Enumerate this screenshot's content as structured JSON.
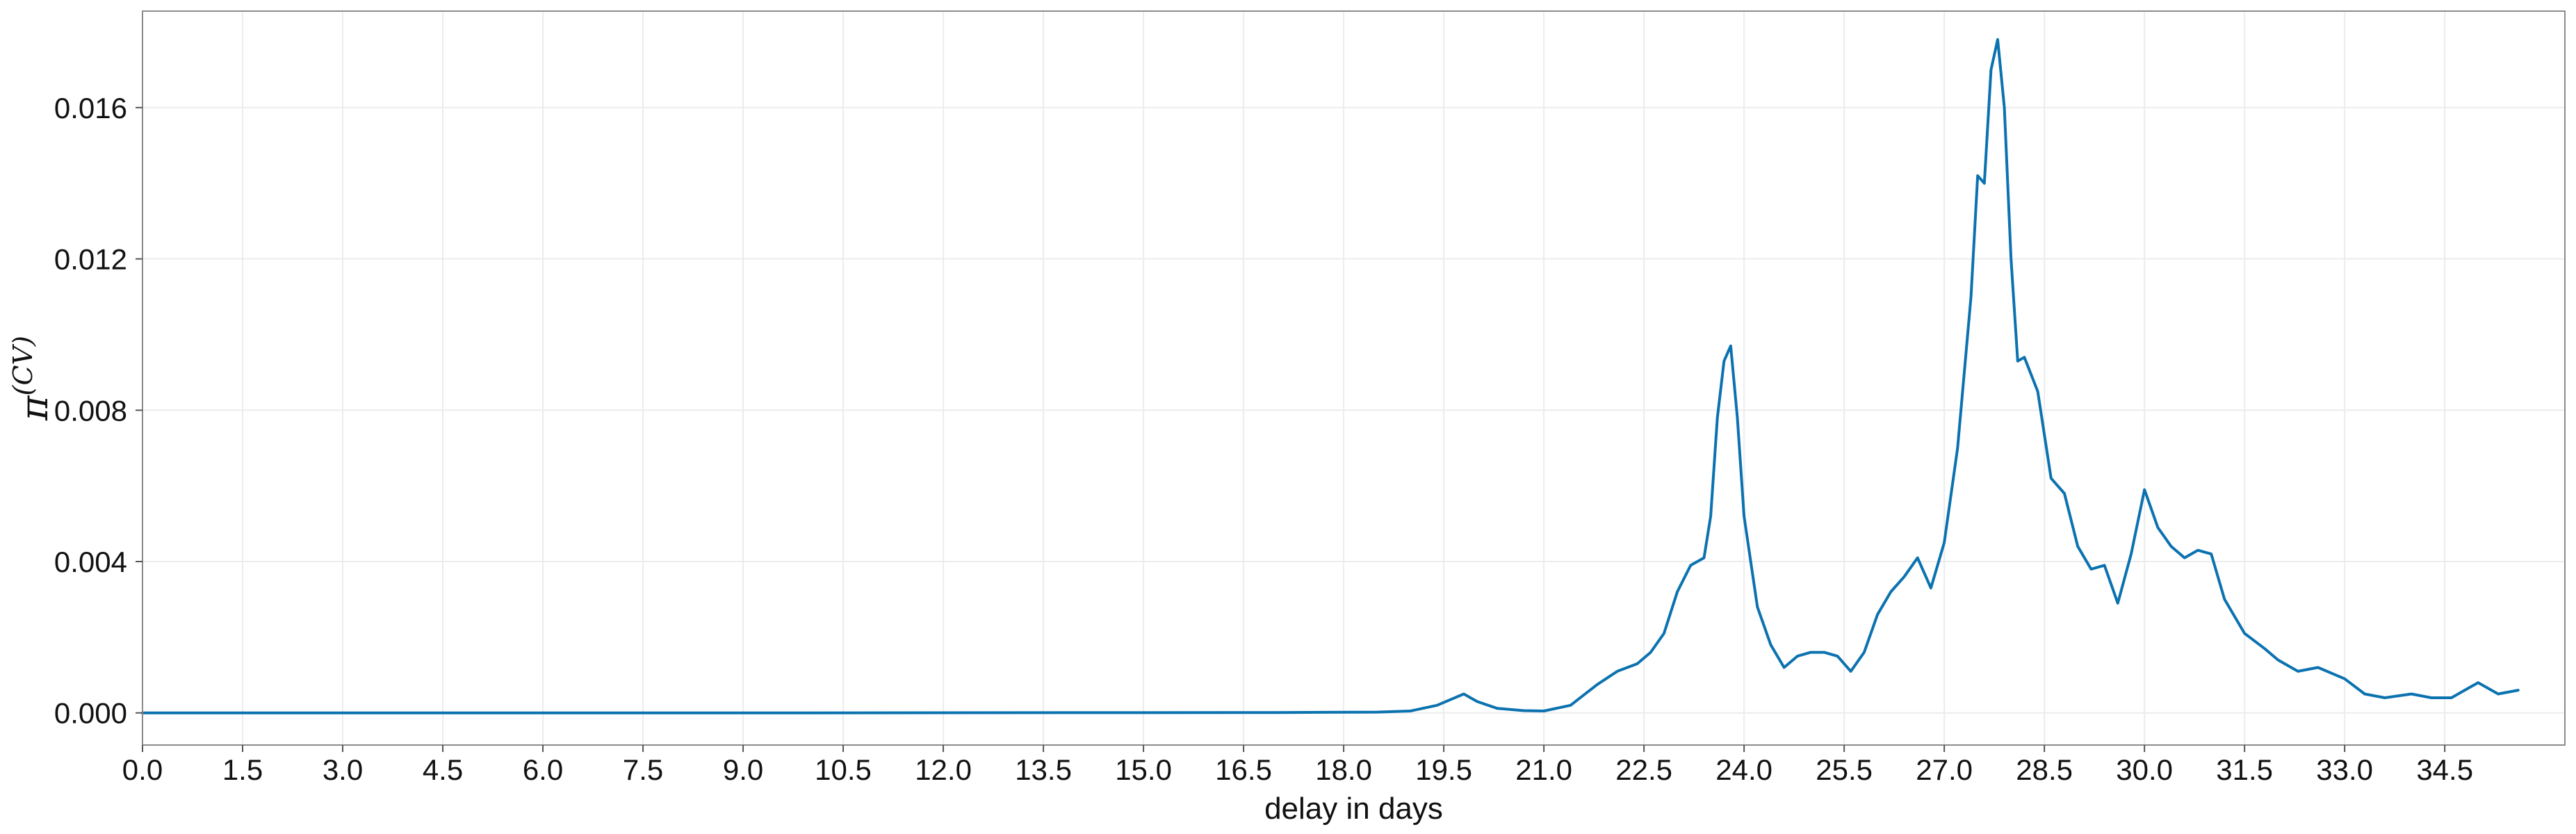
{
  "chart_data": {
    "type": "line",
    "title": "",
    "xlabel": "delay in days",
    "ylabel": {
      "base": "π",
      "superscript": "(CV)"
    },
    "xlim": [
      0,
      36.3
    ],
    "ylim": [
      -0.00085,
      0.01855
    ],
    "grid": true,
    "legend": "none",
    "x_ticks": [
      0.0,
      1.5,
      3.0,
      4.5,
      6.0,
      7.5,
      9.0,
      10.5,
      12.0,
      13.5,
      15.0,
      16.5,
      18.0,
      19.5,
      21.0,
      22.5,
      24.0,
      25.5,
      27.0,
      28.5,
      30.0,
      31.5,
      33.0,
      34.5
    ],
    "x_tick_labels": [
      "0.0",
      "1.5",
      "3.0",
      "4.5",
      "6.0",
      "7.5",
      "9.0",
      "10.5",
      "12.0",
      "13.5",
      "15.0",
      "16.5",
      "18.0",
      "19.5",
      "21.0",
      "22.5",
      "24.0",
      "25.5",
      "27.0",
      "28.5",
      "30.0",
      "31.5",
      "33.0",
      "34.5"
    ],
    "y_ticks": [
      0.0,
      0.004,
      0.008,
      0.012,
      0.016
    ],
    "y_tick_labels": [
      "0.000",
      "0.004",
      "0.008",
      "0.012",
      "0.016"
    ],
    "series": [
      {
        "color": "#0b72b0",
        "x": [
          0.0,
          10.0,
          17.0,
          18.5,
          19.0,
          19.4,
          19.8,
          20.0,
          20.3,
          20.7,
          21.0,
          21.4,
          21.8,
          22.1,
          22.4,
          22.6,
          22.8,
          23.0,
          23.2,
          23.4,
          23.5,
          23.6,
          23.7,
          23.8,
          23.9,
          24.0,
          24.2,
          24.4,
          24.6,
          24.8,
          25.0,
          25.2,
          25.4,
          25.6,
          25.8,
          26.0,
          26.2,
          26.4,
          26.6,
          26.8,
          27.0,
          27.2,
          27.4,
          27.5,
          27.6,
          27.7,
          27.8,
          27.9,
          28.0,
          28.1,
          28.2,
          28.4,
          28.6,
          28.8,
          29.0,
          29.2,
          29.4,
          29.6,
          29.8,
          30.0,
          30.2,
          30.4,
          30.6,
          30.8,
          31.0,
          31.2,
          31.5,
          31.8,
          32.0,
          32.3,
          32.6,
          33.0,
          33.3,
          33.6,
          34.0,
          34.3,
          34.6,
          35.0,
          35.3,
          35.6
        ],
        "y": [
          0.0,
          0.0,
          1e-05,
          2e-05,
          5e-05,
          0.0002,
          0.0005,
          0.0003,
          0.00012,
          6e-05,
          5e-05,
          0.0002,
          0.00075,
          0.0011,
          0.0013,
          0.0016,
          0.0021,
          0.0032,
          0.0039,
          0.0041,
          0.0052,
          0.0078,
          0.0093,
          0.0097,
          0.0078,
          0.0052,
          0.0028,
          0.0018,
          0.0012,
          0.0015,
          0.0016,
          0.0016,
          0.0015,
          0.0011,
          0.0016,
          0.0026,
          0.0032,
          0.0036,
          0.0041,
          0.0033,
          0.0045,
          0.007,
          0.011,
          0.0142,
          0.014,
          0.017,
          0.0178,
          0.016,
          0.012,
          0.0093,
          0.0094,
          0.0085,
          0.0062,
          0.0058,
          0.0044,
          0.0038,
          0.0039,
          0.0029,
          0.0042,
          0.0059,
          0.0049,
          0.0044,
          0.0041,
          0.0043,
          0.0042,
          0.003,
          0.0021,
          0.0017,
          0.0014,
          0.0011,
          0.0012,
          0.0009,
          0.0005,
          0.0004,
          0.0005,
          0.0004,
          0.0004,
          0.0008,
          0.0005,
          0.0006
        ]
      }
    ]
  }
}
